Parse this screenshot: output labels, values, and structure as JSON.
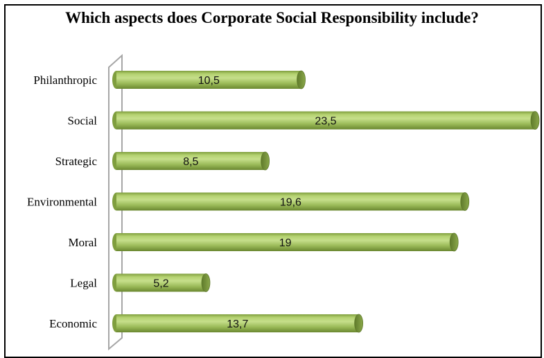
{
  "chart_data": {
    "type": "bar",
    "orientation": "horizontal",
    "title": "Which aspects does Corporate Social Responsibility include?",
    "categories": [
      "Philanthropic",
      "Social",
      "Strategic",
      "Environmental",
      "Moral",
      "Legal",
      "Economic"
    ],
    "values": [
      10.5,
      23.5,
      8.5,
      19.6,
      19,
      5.2,
      13.7
    ],
    "value_labels": [
      "10,5",
      "23,5",
      "8,5",
      "19,6",
      "19",
      "5,2",
      "13,7"
    ],
    "xlim": [
      0,
      23.5
    ],
    "grid": false,
    "legend": "none",
    "colors": {
      "bar_fill": "#9bbb59",
      "bar_light": "#c3dc86",
      "bar_dark": "#6f8d33",
      "axis": "#a6a6a6"
    }
  }
}
